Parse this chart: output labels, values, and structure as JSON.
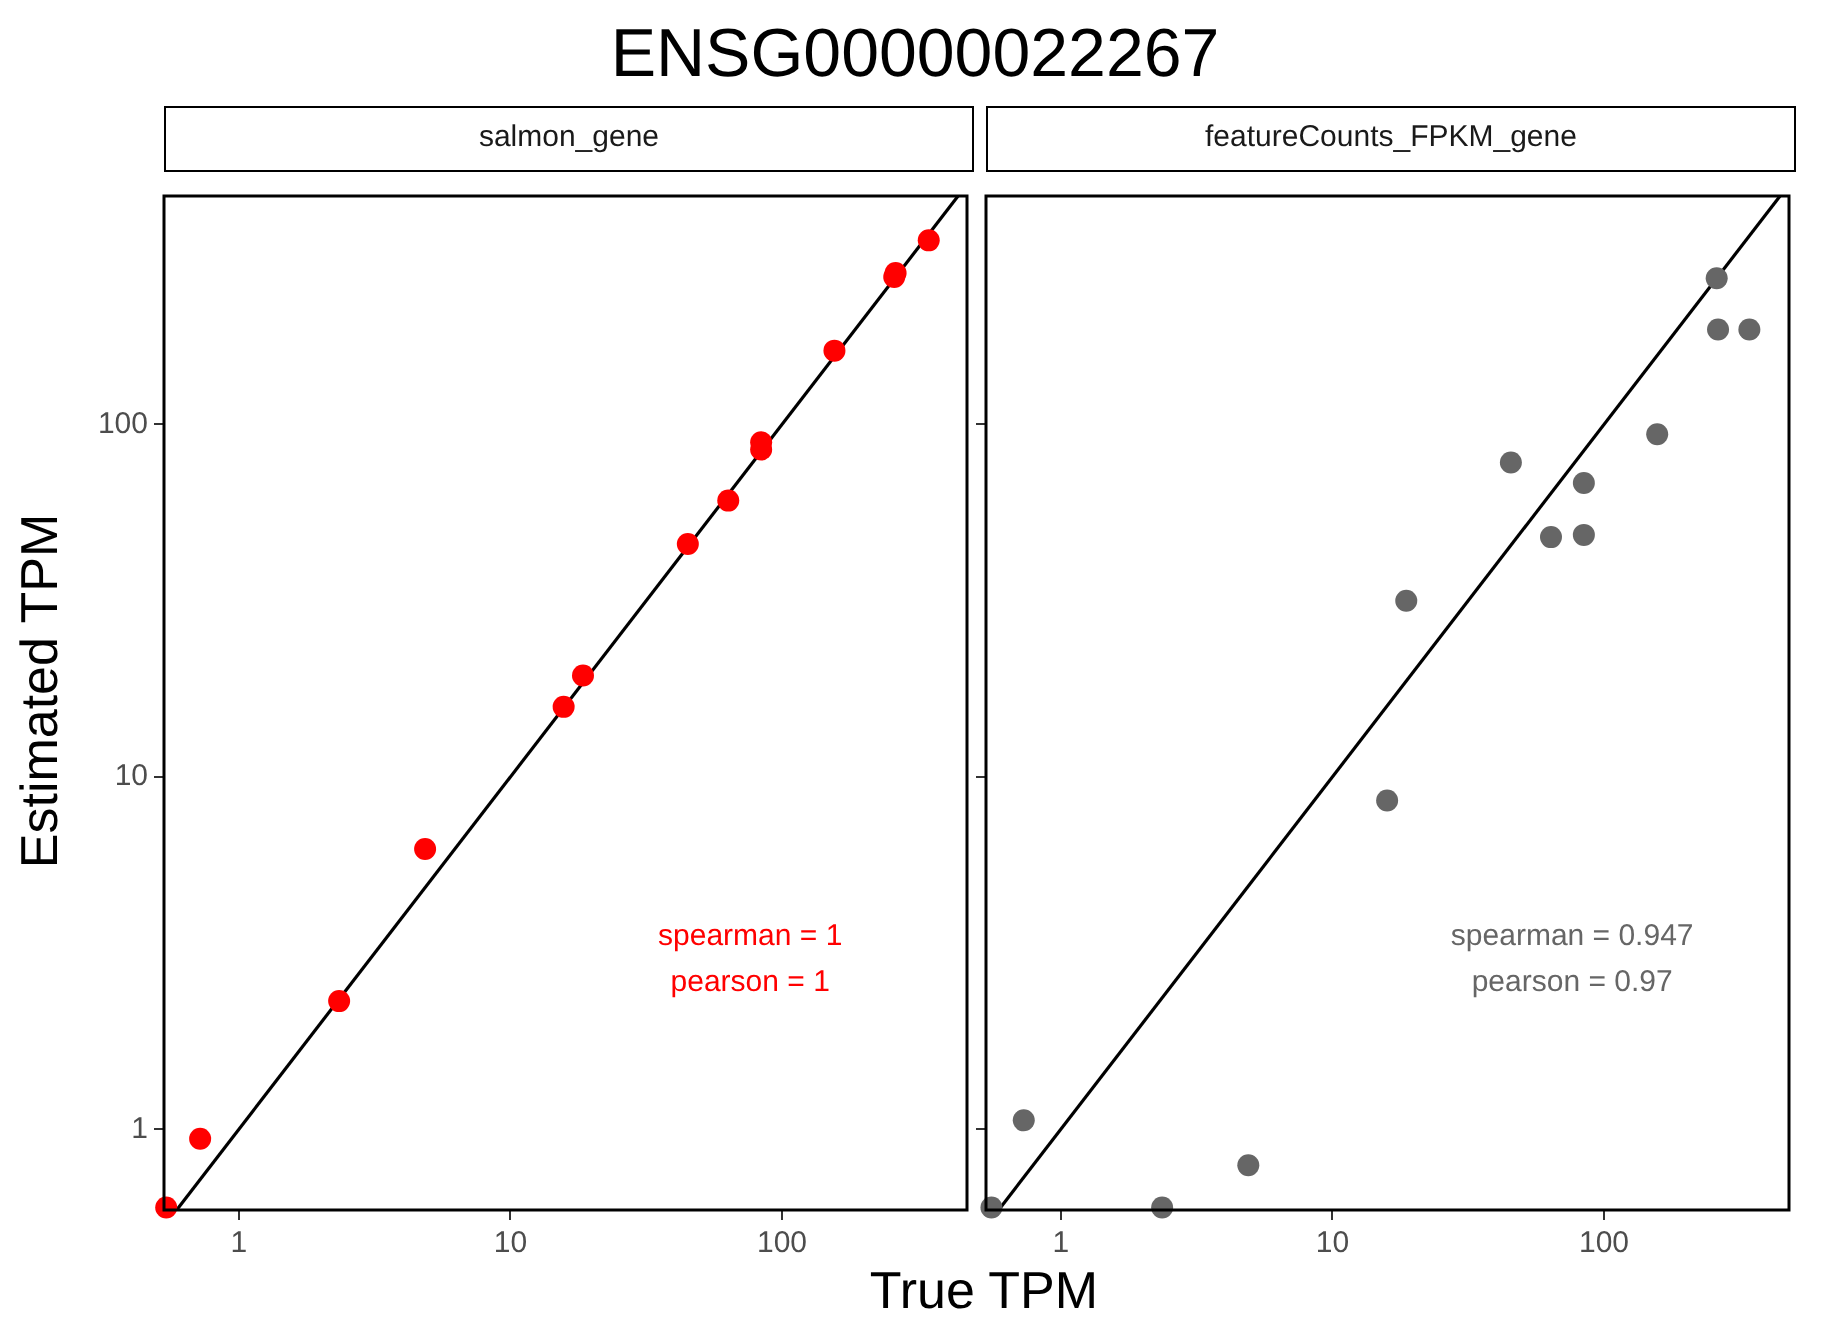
{
  "chart_data": [
    {
      "type": "scatter",
      "title": "ENSG00000022267",
      "subtitle": "salmon_gene",
      "xlabel": "True TPM",
      "ylabel": "Estimated TPM",
      "log": "xy",
      "xlim": [
        0.53,
        480
      ],
      "ylim": [
        0.59,
        445
      ],
      "xticks": [
        1,
        10,
        100
      ],
      "yticks": [
        1,
        10,
        100
      ],
      "grid": false,
      "legend": false,
      "marker": "circle",
      "annotations": [
        "spearman = 1",
        "pearson = 1"
      ],
      "series": [
        {
          "color": "#ff0000",
          "x": [
            0.54,
            0.72,
            2.34,
            4.85,
            15.7,
            18.5,
            45,
            63.4,
            83.8,
            83.8,
            156,
            259,
            262,
            347
          ],
          "values": [
            0.6,
            0.94,
            2.31,
            6.24,
            15.8,
            19.4,
            45.8,
            60.8,
            84.9,
            89,
            162,
            262,
            269,
            333
          ]
        },
        {
          "type": "line",
          "marker": "none",
          "color": "#000000",
          "x": [
            0.59,
            445
          ],
          "values": [
            0.59,
            445
          ]
        }
      ]
    },
    {
      "type": "scatter",
      "subtitle": "featureCounts_FPKM_gene",
      "log": "xy",
      "xlim": [
        0.53,
        480
      ],
      "ylim": [
        0.59,
        445
      ],
      "xticks": [
        1,
        10,
        100
      ],
      "yticks": [
        1,
        10,
        100
      ],
      "grid": false,
      "legend": false,
      "marker": "circle",
      "tick_labels": "x",
      "annotations": [
        "spearman = 0.947",
        "pearson = 0.97"
      ],
      "series": [
        {
          "color": "#666666",
          "x": [
            0.555,
            0.73,
            2.36,
            4.9,
            15.9,
            18.7,
            45.4,
            63.8,
            84.3,
            84.3,
            157,
            260,
            263,
            343
          ],
          "values": [
            0.6,
            1.06,
            0.6,
            0.79,
            8.57,
            31.6,
            78,
            47.9,
            48.6,
            68.2,
            93.8,
            260,
            186,
            186
          ]
        },
        {
          "type": "line",
          "marker": "none",
          "color": "#000000",
          "x": [
            0.59,
            445
          ],
          "values": [
            0.59,
            445
          ]
        }
      ]
    }
  ]
}
